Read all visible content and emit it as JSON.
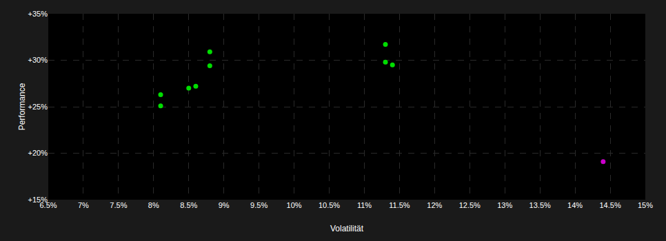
{
  "chart_data": {
    "type": "scatter",
    "xlabel": "Volatilität",
    "ylabel": "Performance",
    "xlim": [
      0.065,
      0.15
    ],
    "ylim": [
      0.15,
      0.35
    ],
    "xticks": [
      {
        "value": 0.065,
        "label": "6.5%"
      },
      {
        "value": 0.07,
        "label": "7%"
      },
      {
        "value": 0.075,
        "label": "7.5%"
      },
      {
        "value": 0.08,
        "label": "8%"
      },
      {
        "value": 0.085,
        "label": "8.5%"
      },
      {
        "value": 0.09,
        "label": "9%"
      },
      {
        "value": 0.095,
        "label": "9.5%"
      },
      {
        "value": 0.1,
        "label": "10%"
      },
      {
        "value": 0.105,
        "label": "10.5%"
      },
      {
        "value": 0.11,
        "label": "11%"
      },
      {
        "value": 0.115,
        "label": "11.5%"
      },
      {
        "value": 0.12,
        "label": "12%"
      },
      {
        "value": 0.125,
        "label": "12.5%"
      },
      {
        "value": 0.13,
        "label": "13%"
      },
      {
        "value": 0.135,
        "label": "13.5%"
      },
      {
        "value": 0.14,
        "label": "14%"
      },
      {
        "value": 0.145,
        "label": "14.5%"
      },
      {
        "value": 0.15,
        "label": "15%"
      }
    ],
    "yticks": [
      {
        "value": 0.15,
        "label": "+15%"
      },
      {
        "value": 0.2,
        "label": "+20%"
      },
      {
        "value": 0.25,
        "label": "+25%"
      },
      {
        "value": 0.3,
        "label": "+30%"
      },
      {
        "value": 0.35,
        "label": "+35%"
      }
    ],
    "grid": true,
    "series": [
      {
        "color": "#00dd00",
        "x": [
          0.081,
          0.081,
          0.085,
          0.086,
          0.088,
          0.088,
          0.113,
          0.113,
          0.114
        ],
        "values": [
          0.263,
          0.251,
          0.27,
          0.272,
          0.309,
          0.294,
          0.317,
          0.298,
          0.295
        ]
      },
      {
        "color": "#cc00cc",
        "x": [
          0.144
        ],
        "values": [
          0.191
        ]
      }
    ]
  }
}
